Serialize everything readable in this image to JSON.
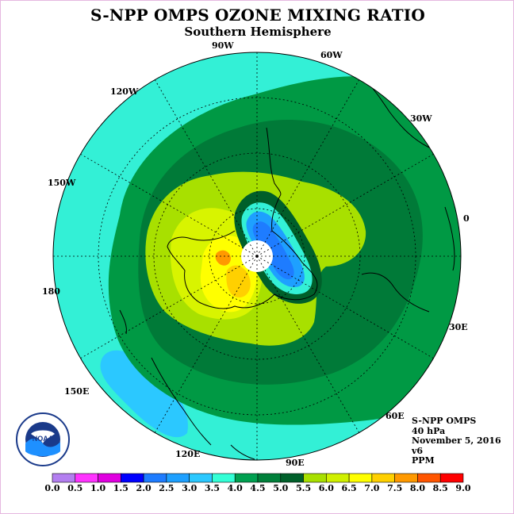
{
  "title": "S-NPP OMPS OZONE MIXING RATIO",
  "subtitle": "Southern Hemisphere",
  "longitude_labels": {
    "lon_90w": "90W",
    "lon_60w": "60W",
    "lon_30w": "30W",
    "lon_0": "0",
    "lon_30e": "30E",
    "lon_60e": "60E",
    "lon_90e": "90E",
    "lon_120e": "120E",
    "lon_150e": "150E",
    "lon_180": "180",
    "lon_150w": "150W",
    "lon_120w": "120W"
  },
  "info": {
    "instrument": "S-NPP OMPS",
    "level": "40 hPa",
    "date": "November 5, 2016",
    "version": "v6",
    "units": "PPM"
  },
  "logo": {
    "text": "NOAA",
    "icon": "noaa-logo-icon"
  },
  "colorbar": {
    "ticks": [
      "0.0",
      "0.5",
      "1.0",
      "1.5",
      "2.0",
      "2.5",
      "3.0",
      "3.5",
      "4.0",
      "4.5",
      "5.0",
      "5.5",
      "6.0",
      "6.5",
      "7.0",
      "7.5",
      "8.0",
      "8.5",
      "9.0"
    ],
    "colors": [
      "#b37ff0",
      "#d8a8f0",
      "#ff33ff",
      "#e000e0",
      "#0000ff",
      "#1e7cff",
      "#1ea0ff",
      "#2bc8ff",
      "#33ffd6",
      "#00a050",
      "#00803a",
      "#00602a",
      "#a8e000",
      "#d0f000",
      "#ffff00",
      "#ffd000",
      "#ff9900",
      "#ff5500",
      "#ff0000",
      "#8b5a3c"
    ]
  },
  "map_colors": {
    "cyan": "#33f0d6",
    "light_cyan": "#2bc8ff",
    "blue": "#1ea0ff",
    "dark_blue": "#1e7cff",
    "green": "#009944",
    "dark_green": "#007a38",
    "darker_green": "#005f2a",
    "yellow_green": "#a8e000",
    "lime": "#d8f400",
    "yellow": "#ffff00",
    "gold": "#ffd000",
    "orange": "#ff9900",
    "pole_hole": "#ffffff",
    "coast": "#000000"
  }
}
